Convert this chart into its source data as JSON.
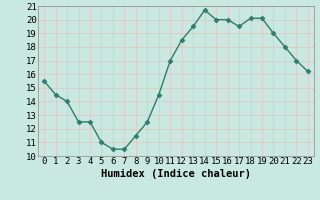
{
  "x": [
    0,
    1,
    2,
    3,
    4,
    5,
    6,
    7,
    8,
    9,
    10,
    11,
    12,
    13,
    14,
    15,
    16,
    17,
    18,
    19,
    20,
    21,
    22,
    23
  ],
  "y": [
    15.5,
    14.5,
    14.0,
    12.5,
    12.5,
    11.0,
    10.5,
    10.5,
    11.5,
    12.5,
    14.5,
    17.0,
    18.5,
    19.5,
    20.7,
    20.0,
    20.0,
    19.5,
    20.1,
    20.1,
    19.0,
    18.0,
    17.0,
    16.2
  ],
  "line_color": "#2e7d6e",
  "marker": "D",
  "marker_size": 2.5,
  "line_width": 1.0,
  "bg_color": "#c8e8e0",
  "grid_color": "#e0c8c8",
  "xlabel": "Humidex (Indice chaleur)",
  "xlabel_fontsize": 7.5,
  "ylim": [
    10,
    21
  ],
  "xlim": [
    -0.5,
    23.5
  ],
  "yticks": [
    10,
    11,
    12,
    13,
    14,
    15,
    16,
    17,
    18,
    19,
    20,
    21
  ],
  "xtick_labels": [
    "0",
    "1",
    "2",
    "3",
    "4",
    "5",
    "6",
    "7",
    "8",
    "9",
    "10",
    "11",
    "12",
    "13",
    "14",
    "15",
    "16",
    "17",
    "18",
    "19",
    "20",
    "21",
    "22",
    "23"
  ],
  "tick_fontsize": 6.5
}
